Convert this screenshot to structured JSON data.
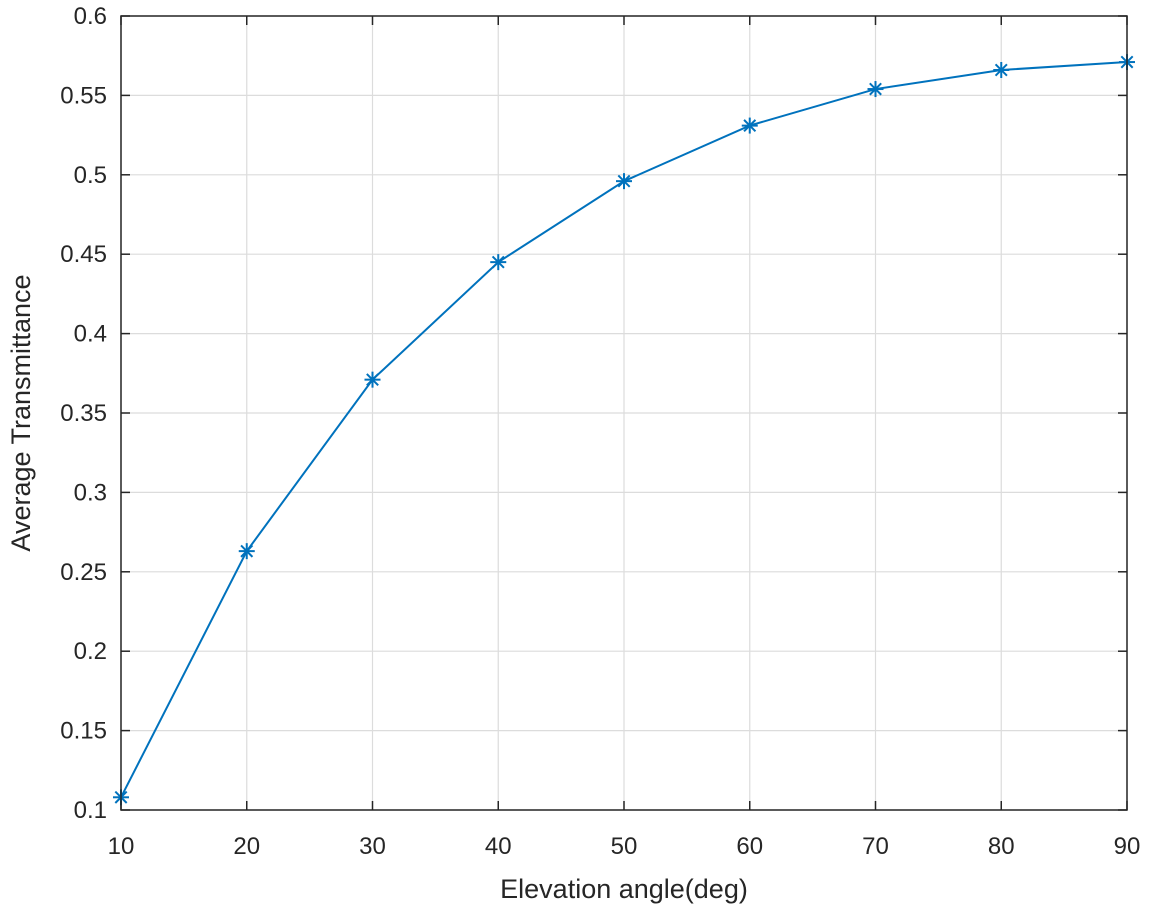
{
  "chart_data": {
    "type": "line",
    "title": "",
    "xlabel": "Elevation angle(deg)",
    "ylabel": "Average Transmittance",
    "xlim": [
      10,
      90
    ],
    "ylim": [
      0.1,
      0.6
    ],
    "xticks": [
      10,
      20,
      30,
      40,
      50,
      60,
      70,
      80,
      90
    ],
    "yticks": [
      0.1,
      0.15,
      0.2,
      0.25,
      0.3,
      0.35,
      0.4,
      0.45,
      0.5,
      0.55,
      0.6
    ],
    "xtick_labels": [
      "10",
      "20",
      "30",
      "40",
      "50",
      "60",
      "70",
      "80",
      "90"
    ],
    "ytick_labels": [
      "0.1",
      "0.15",
      "0.2",
      "0.25",
      "0.3",
      "0.35",
      "0.4",
      "0.45",
      "0.5",
      "0.55",
      "0.6"
    ],
    "grid": true,
    "series": [
      {
        "marker": "asterisk",
        "color": "#0072BD",
        "x": [
          10,
          20,
          30,
          40,
          50,
          60,
          70,
          80,
          90
        ],
        "y": [
          0.108,
          0.263,
          0.371,
          0.445,
          0.496,
          0.531,
          0.554,
          0.566,
          0.571
        ]
      }
    ]
  }
}
